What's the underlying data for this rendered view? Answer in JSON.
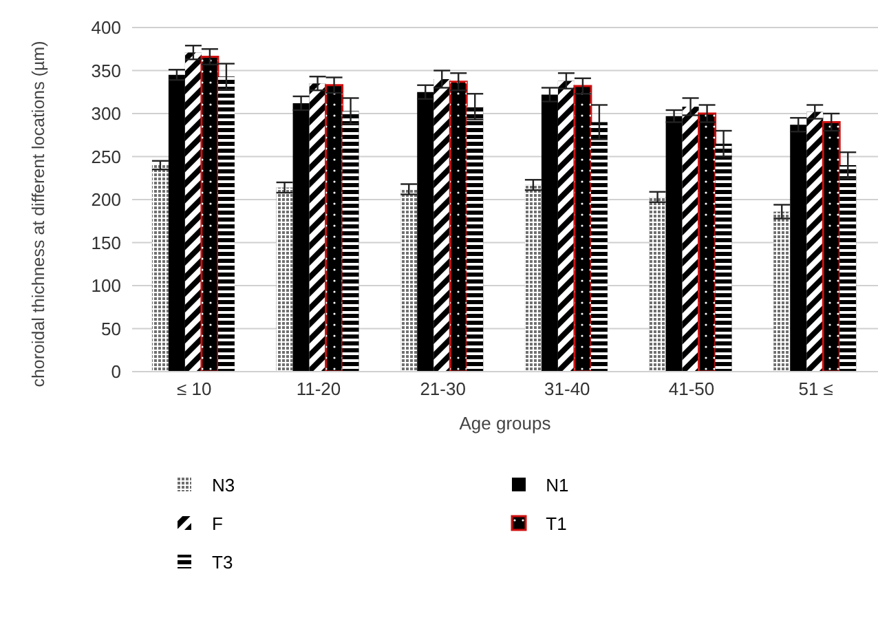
{
  "chart_data": {
    "type": "bar",
    "xlabel": "Age groups",
    "ylabel": "choroidal thichness at different locations (µm)",
    "categories": [
      "≤ 10",
      "11-20",
      "21-30",
      "31-40",
      "41-50",
      "51 ≤"
    ],
    "series": [
      {
        "name": "N3",
        "color": "#707070",
        "values": [
          240,
          214,
          212,
          217,
          203,
          186
        ],
        "errors": [
          5,
          6,
          6,
          6,
          6,
          8
        ]
      },
      {
        "name": "N1",
        "color": "#000000",
        "values": [
          345,
          312,
          325,
          322,
          297,
          287
        ],
        "errors": [
          6,
          8,
          8,
          8,
          7,
          8
        ]
      },
      {
        "name": "F",
        "color": "#000000",
        "values": [
          371,
          335,
          340,
          338,
          308,
          302
        ],
        "errors": [
          8,
          8,
          10,
          9,
          10,
          8
        ]
      },
      {
        "name": "T1",
        "color": "#d01010",
        "values": [
          366,
          333,
          337,
          332,
          300,
          290
        ],
        "errors": [
          9,
          9,
          10,
          9,
          10,
          10
        ]
      },
      {
        "name": "T3",
        "color": "#000000",
        "values": [
          343,
          303,
          308,
          290,
          265,
          240
        ],
        "errors": [
          15,
          15,
          15,
          20,
          15,
          15
        ]
      }
    ],
    "ylim": [
      0,
      400
    ],
    "yticks": [
      0,
      50,
      100,
      150,
      200,
      250,
      300,
      350,
      400
    ],
    "grid": "y",
    "legend": "bottom"
  }
}
